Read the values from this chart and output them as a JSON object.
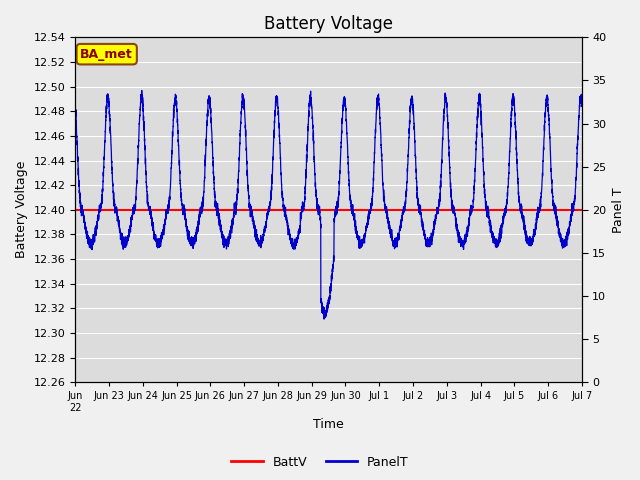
{
  "title": "Battery Voltage",
  "xlabel": "Time",
  "ylabel_left": "Battery Voltage",
  "ylabel_right": "Panel T",
  "ylim_left": [
    12.26,
    12.54
  ],
  "ylim_right": [
    0,
    40
  ],
  "yticks_left": [
    12.26,
    12.28,
    12.3,
    12.32,
    12.34,
    12.36,
    12.38,
    12.4,
    12.42,
    12.44,
    12.46,
    12.48,
    12.5,
    12.52,
    12.54
  ],
  "yticks_right": [
    0,
    5,
    10,
    15,
    20,
    25,
    30,
    35,
    40
  ],
  "batt_voltage": 12.4,
  "batt_color": "#ff0000",
  "panel_color": "#0000cc",
  "bg_color": "#dcdcdc",
  "grid_color": "#ffffff",
  "annotation_text": "BA_met",
  "annotation_bg": "#ffff00",
  "annotation_border": "#8b4513",
  "legend_labels": [
    "BattV",
    "PanelT"
  ],
  "title_fontsize": 12,
  "axis_label_fontsize": 9,
  "tick_fontsize": 8,
  "n_days": 15,
  "n_points": 5000
}
